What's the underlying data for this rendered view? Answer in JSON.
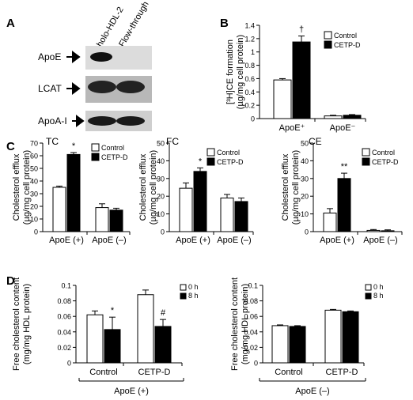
{
  "panels": {
    "A": "A",
    "B": "B",
    "C": "C",
    "D": "D"
  },
  "blot": {
    "lanes": [
      "holo-HDL-2",
      "Flow-through"
    ],
    "rows": [
      {
        "label": "ApoE",
        "bands": [
          0.9,
          0.0
        ]
      },
      {
        "label": "LCAT",
        "bands": [
          0.85,
          0.85
        ]
      },
      {
        "label": "ApoA-I",
        "bands": [
          0.9,
          0.9
        ]
      }
    ]
  },
  "chart_data": [
    {
      "id": "B",
      "type": "bar",
      "ylabel_lines": [
        "[³H]CE formation",
        "(µg/mg cell protein)"
      ],
      "yticks": [
        "0",
        "0.2",
        "0.4",
        "0.6",
        "0.8",
        "1",
        "1.2",
        "1.4"
      ],
      "ylim": [
        0,
        1.4
      ],
      "groups": [
        "ApoE⁺",
        "ApoE⁻"
      ],
      "series": [
        {
          "name": "Control",
          "values": [
            0.58,
            0.04
          ],
          "err": [
            0.02,
            0.01
          ]
        },
        {
          "name": "CETP-D",
          "values": [
            1.15,
            0.05
          ],
          "err": [
            0.09,
            0.01
          ]
        }
      ],
      "marks": [
        {
          "group": 0,
          "series": 1,
          "text": "†"
        }
      ],
      "legend": [
        "Control",
        "CETP-D"
      ]
    },
    {
      "id": "C1",
      "type": "bar",
      "title": "TC",
      "ylabel_lines": [
        "Cholesterol efflux",
        "(µg/mg cell protein)"
      ],
      "yticks": [
        "0",
        "10",
        "20",
        "30",
        "40",
        "50",
        "60",
        "70"
      ],
      "ylim": [
        0,
        70
      ],
      "groups": [
        "ApoE (+)",
        "ApoE (–)"
      ],
      "series": [
        {
          "name": "Control",
          "values": [
            35,
            19
          ],
          "err": [
            1,
            3
          ]
        },
        {
          "name": "CETP-D",
          "values": [
            61,
            17
          ],
          "err": [
            1.5,
            1.5
          ]
        }
      ],
      "marks": [
        {
          "group": 0,
          "series": 1,
          "text": "*"
        }
      ],
      "legend": [
        "Control",
        "CETP-D"
      ]
    },
    {
      "id": "C2",
      "type": "bar",
      "title": "FC",
      "ylabel_lines": [
        "Cholesterol efflux",
        "(µg/mg cell protein)"
      ],
      "yticks": [
        "0",
        "10",
        "20",
        "30",
        "40",
        "50"
      ],
      "ylim": [
        0,
        50
      ],
      "groups": [
        "ApoE (+)",
        "ApoE (–)"
      ],
      "series": [
        {
          "name": "Control",
          "values": [
            24.5,
            19
          ],
          "err": [
            3,
            2
          ]
        },
        {
          "name": "CETP-D",
          "values": [
            34,
            17
          ],
          "err": [
            2,
            2
          ]
        }
      ],
      "marks": [
        {
          "group": 0,
          "series": 1,
          "text": "*"
        }
      ],
      "legend": [
        "Control",
        "CETP-D"
      ]
    },
    {
      "id": "C3",
      "type": "bar",
      "title": "CE",
      "ylabel_lines": [
        "Cholesterol efflux",
        "(µg/mg cell protein)"
      ],
      "yticks": [
        "0",
        "10",
        "20",
        "30",
        "40",
        "50"
      ],
      "ylim": [
        0,
        50
      ],
      "groups": [
        "ApoE (+)",
        "ApoE (–)"
      ],
      "series": [
        {
          "name": "Control",
          "values": [
            10.5,
            0.7
          ],
          "err": [
            2.5,
            0.5
          ]
        },
        {
          "name": "CETP-D",
          "values": [
            30,
            0.5
          ],
          "err": [
            3,
            0.5
          ]
        }
      ],
      "marks": [
        {
          "group": 0,
          "series": 1,
          "text": "**"
        }
      ],
      "legend": [
        "Control",
        "CETP-D"
      ]
    },
    {
      "id": "D1",
      "type": "bar",
      "ylabel_lines": [
        "Free cholesterol content",
        "(mg/mg HDL protein)"
      ],
      "yticks": [
        "0",
        "0.02",
        "0.04",
        "0.06",
        "0.08",
        "0.1"
      ],
      "ylim": [
        0,
        0.1
      ],
      "groups": [
        "Control",
        "CETP-D"
      ],
      "group_caption": "ApoE (+)",
      "series": [
        {
          "name": "0 h",
          "values": [
            0.062,
            0.088
          ],
          "err": [
            0.005,
            0.006
          ]
        },
        {
          "name": "8 h",
          "values": [
            0.043,
            0.047
          ],
          "err": [
            0.016,
            0.009
          ]
        }
      ],
      "marks": [
        {
          "group": 0,
          "series": 1,
          "text": "*"
        },
        {
          "group": 1,
          "series": 1,
          "text": "#"
        }
      ],
      "legend": [
        "0 h",
        "8 h"
      ]
    },
    {
      "id": "D2",
      "type": "bar",
      "ylabel_lines": [
        "Free cholesterol content",
        "(mg/mg HDL protein)"
      ],
      "yticks": [
        "0",
        "0.02",
        "0.04",
        "0.06",
        "0.08",
        "0.1"
      ],
      "ylim": [
        0,
        0.1
      ],
      "groups": [
        "Control",
        "CETP-D"
      ],
      "group_caption": "ApoE (–)",
      "series": [
        {
          "name": "0 h",
          "values": [
            0.048,
            0.068
          ],
          "err": [
            0.001,
            0.001
          ]
        },
        {
          "name": "8 h",
          "values": [
            0.047,
            0.066
          ],
          "err": [
            0.001,
            0.001
          ]
        }
      ],
      "marks": [],
      "legend": [
        "0 h",
        "8 h"
      ]
    }
  ]
}
